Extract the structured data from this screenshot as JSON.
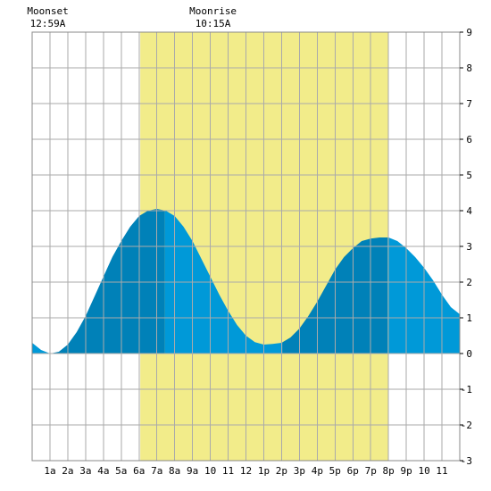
{
  "chart_data": {
    "type": "area",
    "title": "",
    "xlabel": "",
    "ylabel": "",
    "x_range_hours": [
      0,
      24
    ],
    "ylim": [
      -3,
      9
    ],
    "y_ticks": [
      -3,
      -2,
      -1,
      0,
      1,
      2,
      3,
      4,
      5,
      6,
      7,
      8,
      9
    ],
    "x_tick_labels": [
      "1a",
      "2a",
      "3a",
      "4a",
      "5a",
      "6a",
      "7a",
      "8a",
      "9a",
      "10",
      "11",
      "12",
      "1p",
      "2p",
      "3p",
      "4p",
      "5p",
      "6p",
      "7p",
      "8p",
      "9p",
      "10",
      "11"
    ],
    "grid": true,
    "daylight": {
      "start_hour": 6.07,
      "end_hour": 19.97,
      "color": "#f2ec8a"
    },
    "annotations": [
      {
        "label": "Moonset",
        "time": "12:59A",
        "hour": 0.98
      },
      {
        "label": "Moonrise",
        "time": "10:15A",
        "hour": 10.25
      }
    ],
    "tide_extremes": [
      {
        "type": "low",
        "hour": 1.2,
        "value": 0.0
      },
      {
        "type": "high",
        "hour": 7.45,
        "value": 4.05
      },
      {
        "type": "low",
        "hour": 14.05,
        "value": 0.28
      },
      {
        "type": "high",
        "hour": 19.95,
        "value": 3.25
      }
    ],
    "series": [
      {
        "x": [
          0,
          0.5,
          1,
          1.5,
          2,
          2.5,
          3,
          3.5,
          4,
          4.5,
          5,
          5.5,
          6,
          6.5,
          7,
          7.5,
          8,
          8.5,
          9,
          9.5,
          10,
          10.5,
          11,
          11.5,
          12,
          12.5,
          13,
          13.5,
          14,
          14.5,
          15,
          15.5,
          16,
          16.5,
          17,
          17.5,
          18,
          18.5,
          19,
          19.5,
          20,
          20.5,
          21,
          21.5,
          22,
          22.5,
          23,
          23.5,
          24
        ],
        "values": [
          0.3,
          0.1,
          0.0,
          0.05,
          0.25,
          0.6,
          1.05,
          1.6,
          2.15,
          2.7,
          3.15,
          3.55,
          3.85,
          4.0,
          4.05,
          4.0,
          3.85,
          3.55,
          3.15,
          2.65,
          2.15,
          1.65,
          1.2,
          0.8,
          0.5,
          0.32,
          0.25,
          0.27,
          0.3,
          0.45,
          0.7,
          1.05,
          1.45,
          1.9,
          2.35,
          2.7,
          2.95,
          3.15,
          3.22,
          3.25,
          3.25,
          3.15,
          2.95,
          2.7,
          2.4,
          2.05,
          1.65,
          1.3,
          1.1
        ]
      }
    ],
    "colors": {
      "tide_rising": "#0081b8",
      "tide_falling": "#0099d8",
      "grid": "#aaaaaa",
      "background": "#ffffff"
    }
  }
}
